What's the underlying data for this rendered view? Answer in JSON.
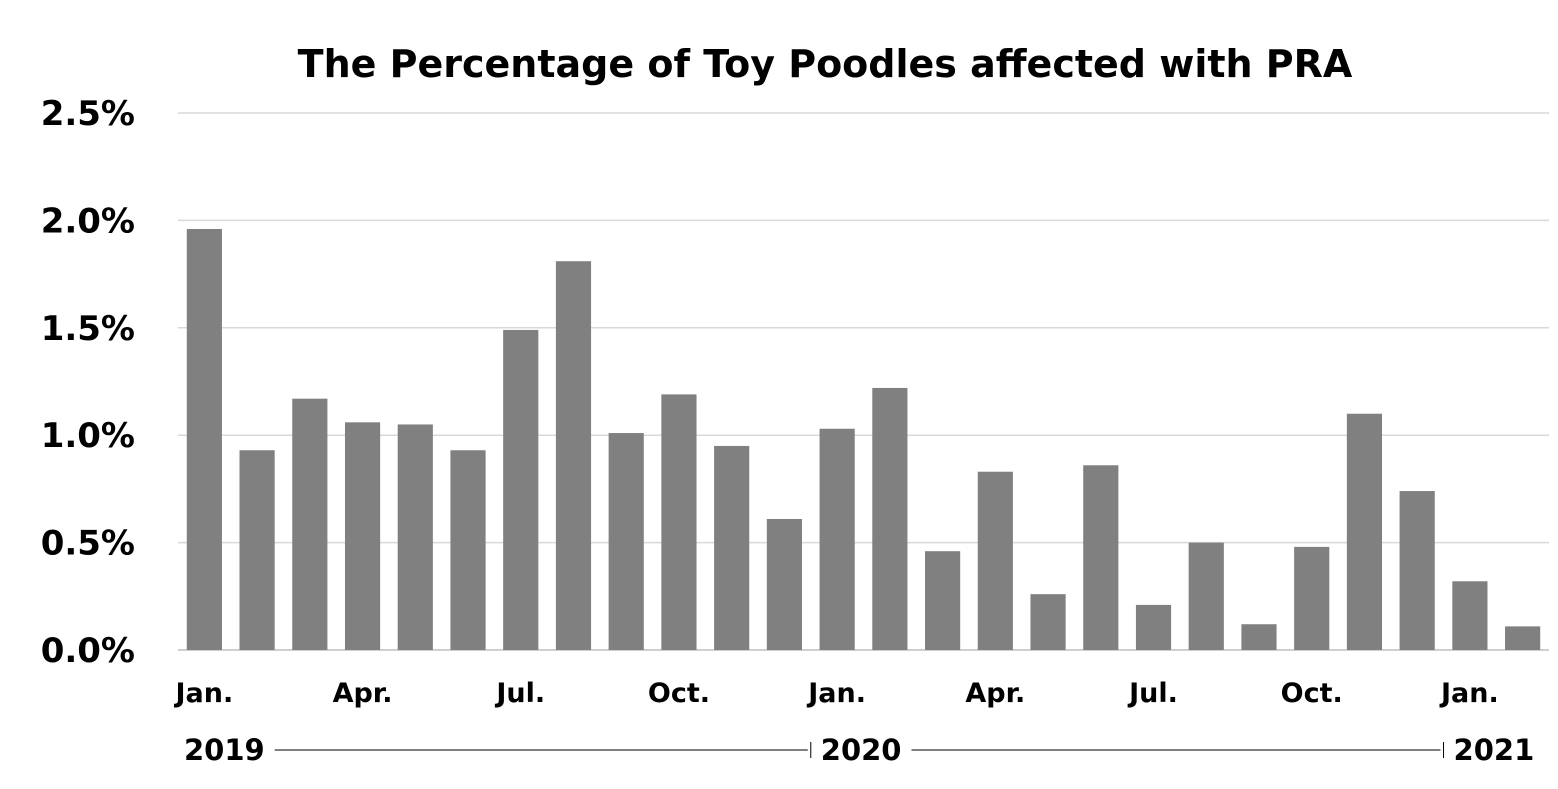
{
  "chart_data": {
    "type": "bar",
    "title": "The Percentage of Toy Poodles affected with PRA",
    "xlabel": "",
    "ylabel": "",
    "ylim": [
      0,
      2.5
    ],
    "yticks": [
      0,
      0.5,
      1.0,
      1.5,
      2.0,
      2.5
    ],
    "ytick_labels": [
      "0.0%",
      "0.5%",
      "1.0%",
      "1.5%",
      "2.0%",
      "2.5%"
    ],
    "grid": true,
    "legend": "none",
    "bar_color": "#808080",
    "categories": [
      "2019-01",
      "2019-02",
      "2019-03",
      "2019-04",
      "2019-05",
      "2019-06",
      "2019-07",
      "2019-08",
      "2019-09",
      "2019-10",
      "2019-11",
      "2019-12",
      "2020-01",
      "2020-02",
      "2020-03",
      "2020-04",
      "2020-05",
      "2020-06",
      "2020-07",
      "2020-08",
      "2020-09",
      "2020-10",
      "2020-11",
      "2020-12",
      "2021-01",
      "2021-02"
    ],
    "values": [
      1.96,
      0.93,
      1.17,
      1.06,
      1.05,
      0.93,
      1.49,
      1.81,
      1.01,
      1.19,
      0.95,
      0.61,
      1.03,
      1.22,
      0.46,
      0.83,
      0.26,
      0.86,
      0.21,
      0.5,
      0.12,
      0.48,
      1.1,
      0.74,
      0.32,
      0.11
    ],
    "month_labels": [
      {
        "index": 0,
        "label": "Jan."
      },
      {
        "index": 3,
        "label": "Apr."
      },
      {
        "index": 6,
        "label": "Jul."
      },
      {
        "index": 9,
        "label": "Oct."
      },
      {
        "index": 12,
        "label": "Jan."
      },
      {
        "index": 15,
        "label": "Apr."
      },
      {
        "index": 18,
        "label": "Jul."
      },
      {
        "index": 21,
        "label": "Oct."
      },
      {
        "index": 24,
        "label": "Jan."
      }
    ],
    "years": [
      {
        "label": "2019",
        "start_index": 0,
        "end_index": 11
      },
      {
        "label": "2020",
        "start_index": 12,
        "end_index": 23
      },
      {
        "label": "2021",
        "start_index": 24,
        "end_index": 25
      }
    ]
  }
}
